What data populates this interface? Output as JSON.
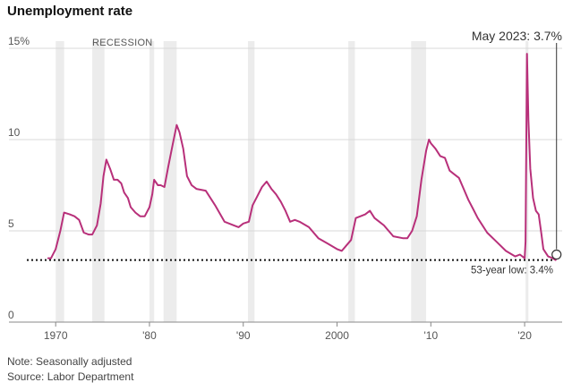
{
  "chart_data": {
    "type": "line",
    "title": "Unemployment rate",
    "xlabel": "",
    "ylabel": "",
    "y_ticks": [
      {
        "value": 15,
        "label": "15%"
      },
      {
        "value": 10,
        "label": "10"
      },
      {
        "value": 5,
        "label": "5"
      },
      {
        "value": 0,
        "label": "0"
      }
    ],
    "x_ticks": [
      {
        "value": 1970,
        "label": "1970"
      },
      {
        "value": 1980,
        "label": "'80"
      },
      {
        "value": 1990,
        "label": "'90"
      },
      {
        "value": 2000,
        "label": "2000"
      },
      {
        "value": 2010,
        "label": "'10"
      },
      {
        "value": 2020,
        "label": "'20"
      }
    ],
    "xlim": [
      1967.5,
      2024
    ],
    "ylim": [
      0,
      15
    ],
    "grid": true,
    "recession_label": "RECESSION",
    "recessions": [
      [
        1970.0,
        1970.9
      ],
      [
        1973.9,
        1975.2
      ],
      [
        1980.0,
        1980.5
      ],
      [
        1981.5,
        1982.9
      ],
      [
        1990.5,
        1991.2
      ],
      [
        2001.2,
        2001.9
      ],
      [
        2007.9,
        2009.5
      ],
      [
        2020.1,
        2020.4
      ]
    ],
    "series": [
      {
        "color": "#b8307a",
        "x": [
          1969.2,
          1969.5,
          1970.0,
          1970.5,
          1970.9,
          1971.5,
          1972.0,
          1972.5,
          1973.0,
          1973.5,
          1973.9,
          1974.4,
          1974.8,
          1975.1,
          1975.4,
          1975.8,
          1976.2,
          1976.6,
          1977.0,
          1977.3,
          1977.7,
          1978.0,
          1978.5,
          1979.0,
          1979.5,
          1980.0,
          1980.3,
          1980.5,
          1980.9,
          1981.2,
          1981.6,
          1982.0,
          1982.5,
          1982.9,
          1983.2,
          1983.6,
          1984.0,
          1984.5,
          1985.0,
          1986.0,
          1987.0,
          1988.0,
          1989.0,
          1989.5,
          1990.0,
          1990.6,
          1991.0,
          1991.5,
          1992.0,
          1992.5,
          1993.0,
          1993.5,
          1994.0,
          1994.5,
          1995.0,
          1995.5,
          1996.0,
          1997.0,
          1998.0,
          1999.0,
          2000.0,
          2000.5,
          2001.0,
          2001.5,
          2002.0,
          2002.5,
          2003.0,
          2003.5,
          2004.0,
          2004.5,
          2005.0,
          2006.0,
          2007.0,
          2007.5,
          2008.0,
          2008.5,
          2009.0,
          2009.5,
          2009.8,
          2010.0,
          2010.5,
          2011.0,
          2011.5,
          2012.0,
          2012.5,
          2013.0,
          2013.5,
          2014.0,
          2014.5,
          2015.0,
          2016.0,
          2017.0,
          2018.0,
          2019.0,
          2019.5,
          2020.0,
          2020.1,
          2020.25,
          2020.4,
          2020.6,
          2020.9,
          2021.2,
          2021.5,
          2021.8,
          2022.0,
          2022.5,
          2023.0,
          2023.3,
          2023.4
        ],
        "values": [
          3.5,
          3.5,
          4.0,
          5.0,
          6.0,
          5.9,
          5.8,
          5.6,
          4.9,
          4.8,
          4.8,
          5.3,
          6.5,
          8.0,
          8.9,
          8.4,
          7.8,
          7.8,
          7.6,
          7.1,
          6.8,
          6.3,
          6.0,
          5.8,
          5.8,
          6.3,
          7.0,
          7.8,
          7.5,
          7.5,
          7.4,
          8.5,
          9.8,
          10.8,
          10.4,
          9.5,
          8.0,
          7.5,
          7.3,
          7.2,
          6.4,
          5.5,
          5.3,
          5.2,
          5.4,
          5.5,
          6.4,
          6.9,
          7.4,
          7.7,
          7.3,
          7.0,
          6.6,
          6.1,
          5.5,
          5.6,
          5.5,
          5.2,
          4.6,
          4.3,
          4.0,
          3.9,
          4.2,
          4.5,
          5.7,
          5.8,
          5.9,
          6.1,
          5.7,
          5.5,
          5.3,
          4.7,
          4.6,
          4.6,
          5.0,
          5.8,
          7.8,
          9.4,
          10.0,
          9.8,
          9.5,
          9.1,
          9.0,
          8.3,
          8.1,
          7.9,
          7.3,
          6.7,
          6.2,
          5.7,
          4.9,
          4.4,
          3.9,
          3.6,
          3.7,
          3.5,
          4.4,
          14.7,
          11.1,
          8.4,
          6.8,
          6.1,
          5.9,
          4.8,
          4.0,
          3.6,
          3.5,
          3.4,
          3.7
        ]
      }
    ],
    "annotations": {
      "latest": {
        "x": 2023.4,
        "value": 3.7,
        "label": "May 2023: 3.7%"
      },
      "low": {
        "value": 3.4,
        "label": "53-year low: 3.4%"
      }
    }
  },
  "notes": {
    "note": "Note: Seasonally adjusted",
    "source": "Source: Labor Department"
  }
}
